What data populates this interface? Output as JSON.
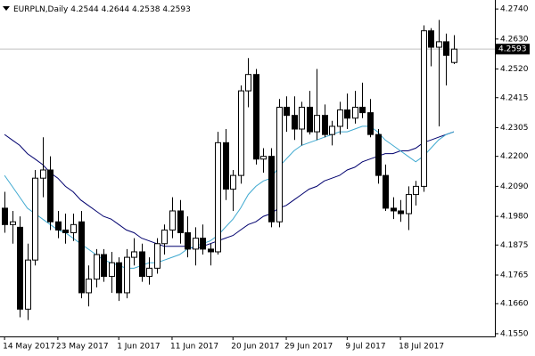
{
  "chart_data": {
    "type": "candlestick",
    "title": "EURPLN,Daily",
    "open": [
      4.201,
      4.195,
      4.194,
      4.164,
      4.182,
      4.212,
      4.215,
      4.196,
      4.193,
      4.192,
      4.196,
      4.17,
      4.175,
      4.184,
      4.176,
      4.181,
      4.17,
      4.183,
      4.185,
      4.176,
      4.179,
      4.188,
      4.193,
      4.2,
      4.192,
      4.186,
      4.19,
      4.186,
      4.185,
      4.225,
      4.208,
      4.213,
      4.244,
      4.25,
      4.219,
      4.22,
      4.196,
      4.238,
      4.235,
      4.23,
      4.238,
      4.229,
      4.235,
      4.228,
      4.231,
      4.237,
      4.234,
      4.238,
      4.236,
      4.228,
      4.213,
      4.201,
      4.2,
      4.199,
      4.206,
      4.209,
      4.266,
      4.26,
      4.262,
      4.2544
    ],
    "high": [
      4.207,
      4.2,
      4.198,
      4.188,
      4.215,
      4.227,
      4.22,
      4.2,
      4.199,
      4.199,
      4.2,
      4.18,
      4.186,
      4.186,
      4.185,
      4.183,
      4.186,
      4.19,
      4.188,
      4.183,
      4.19,
      4.195,
      4.205,
      4.204,
      4.198,
      4.194,
      4.195,
      4.188,
      4.229,
      4.23,
      4.215,
      4.246,
      4.256,
      4.252,
      4.223,
      4.223,
      4.241,
      4.242,
      4.242,
      4.24,
      4.244,
      4.252,
      4.239,
      4.233,
      4.24,
      4.243,
      4.244,
      4.247,
      4.241,
      4.23,
      4.217,
      4.205,
      4.204,
      4.209,
      4.211,
      4.268,
      4.267,
      4.27,
      4.265,
      4.2644
    ],
    "low": [
      4.192,
      4.188,
      4.161,
      4.16,
      4.18,
      4.205,
      4.193,
      4.19,
      4.188,
      4.189,
      4.168,
      4.165,
      4.172,
      4.174,
      4.17,
      4.167,
      4.168,
      4.18,
      4.174,
      4.173,
      4.177,
      4.184,
      4.19,
      4.188,
      4.183,
      4.18,
      4.184,
      4.18,
      4.184,
      4.204,
      4.2,
      4.21,
      4.238,
      4.217,
      4.214,
      4.194,
      4.194,
      4.229,
      4.226,
      4.224,
      4.228,
      4.226,
      4.227,
      4.224,
      4.228,
      4.23,
      4.232,
      4.234,
      4.227,
      4.21,
      4.2,
      4.197,
      4.196,
      4.193,
      4.202,
      4.207,
      4.253,
      4.231,
      4.246,
      4.2538
    ],
    "close": [
      4.195,
      4.196,
      4.164,
      4.182,
      4.212,
      4.215,
      4.196,
      4.193,
      4.192,
      4.195,
      4.17,
      4.175,
      4.184,
      4.176,
      4.181,
      4.17,
      4.183,
      4.185,
      4.176,
      4.179,
      4.188,
      4.193,
      4.2,
      4.192,
      4.186,
      4.19,
      4.186,
      4.185,
      4.225,
      4.208,
      4.213,
      4.244,
      4.25,
      4.219,
      4.22,
      4.196,
      4.238,
      4.235,
      4.23,
      4.238,
      4.229,
      4.235,
      4.228,
      4.231,
      4.237,
      4.234,
      4.238,
      4.236,
      4.228,
      4.213,
      4.201,
      4.2,
      4.199,
      4.206,
      4.209,
      4.266,
      4.26,
      4.262,
      4.257,
      4.2593
    ],
    "up_color": "#ffffff",
    "down_color": "#000000",
    "overlays": [
      {
        "color": "#00006e",
        "values": [
          4.228,
          4.226,
          4.224,
          4.221,
          4.219,
          4.217,
          4.214,
          4.212,
          4.209,
          4.207,
          4.204,
          4.202,
          4.2,
          4.198,
          4.197,
          4.195,
          4.193,
          4.192,
          4.19,
          4.189,
          4.188,
          4.187,
          4.187,
          4.187,
          4.187,
          4.186,
          4.187,
          4.188,
          4.189,
          4.19,
          4.191,
          4.193,
          4.195,
          4.196,
          4.198,
          4.199,
          4.201,
          4.202,
          4.204,
          4.206,
          4.208,
          4.209,
          4.211,
          4.212,
          4.213,
          4.215,
          4.216,
          4.218,
          4.219,
          4.22,
          4.221,
          4.221,
          4.222,
          4.222,
          4.223,
          4.225,
          4.226,
          4.227,
          4.228,
          4.229
        ]
      },
      {
        "color": "#3fa9d0",
        "values": [
          4.213,
          4.209,
          4.205,
          4.201,
          4.199,
          4.197,
          4.195,
          4.193,
          4.192,
          4.19,
          4.188,
          4.186,
          4.184,
          4.182,
          4.181,
          4.18,
          4.179,
          4.179,
          4.18,
          4.181,
          4.181,
          4.182,
          4.183,
          4.184,
          4.186,
          4.187,
          4.188,
          4.189,
          4.191,
          4.194,
          4.197,
          4.201,
          4.206,
          4.209,
          4.211,
          4.212,
          4.216,
          4.219,
          4.222,
          4.224,
          4.225,
          4.226,
          4.227,
          4.228,
          4.229,
          4.229,
          4.23,
          4.231,
          4.231,
          4.229,
          4.226,
          4.224,
          4.222,
          4.22,
          4.218,
          4.22,
          4.223,
          4.226,
          4.228,
          4.229
        ]
      }
    ],
    "xlim": [
      -0.6,
      64.4
    ],
    "xticks": [
      {
        "value": 0,
        "label": "14 May 2017"
      },
      {
        "value": 7,
        "label": "23 May 2017"
      },
      {
        "value": 15,
        "label": "1 Jun 2017"
      },
      {
        "value": 22,
        "label": "11 Jun 2017"
      },
      {
        "value": 30,
        "label": "20 Jun 2017"
      },
      {
        "value": 37,
        "label": "29 Jun 2017"
      },
      {
        "value": 45,
        "label": "9 Jul 2017"
      },
      {
        "value": 52,
        "label": "18 Jul 2017"
      }
    ],
    "ylim": [
      4.154,
      4.2773
    ],
    "yticks": [
      {
        "value": 4.274,
        "label": "4.2740"
      },
      {
        "value": 4.263,
        "label": "4.2630"
      },
      {
        "value": 4.252,
        "label": "4.2520"
      },
      {
        "value": 4.2415,
        "label": "4.2415"
      },
      {
        "value": 4.2305,
        "label": "4.2305"
      },
      {
        "value": 4.22,
        "label": "4.2200"
      },
      {
        "value": 4.209,
        "label": "4.2090"
      },
      {
        "value": 4.198,
        "label": "4.1980"
      },
      {
        "value": 4.1875,
        "label": "4.1875"
      },
      {
        "value": 4.1765,
        "label": "4.1765"
      },
      {
        "value": 4.166,
        "label": "4.1660"
      },
      {
        "value": 4.155,
        "label": "4.1550"
      }
    ]
  }
}
